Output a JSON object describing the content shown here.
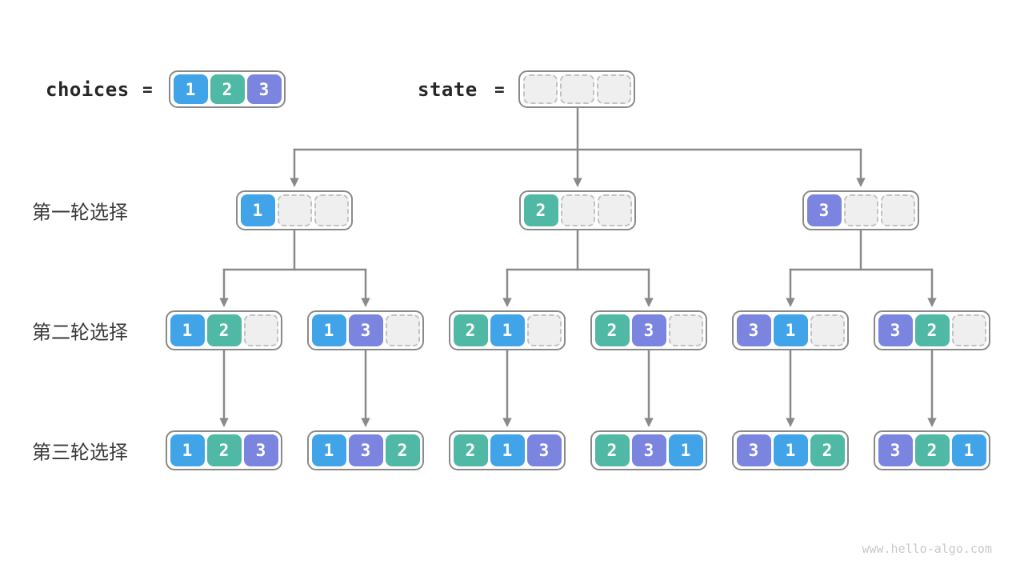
{
  "watermark": "www.hello-algo.com",
  "colors": {
    "cell_1": "#41A4E9",
    "cell_2": "#4FB9A6",
    "cell_3": "#7B85DF",
    "edge": "#8A8A8A",
    "empty_fill": "#EFEFEF",
    "empty_border": "#C2C2C2",
    "cell_text": "#FFFFFF"
  },
  "header": {
    "choices": {
      "label": "choices",
      "eq": "=",
      "cells": [
        1,
        2,
        3
      ]
    },
    "state": {
      "label": "state",
      "eq": "=",
      "cells": [
        null,
        null,
        null
      ]
    }
  },
  "rounds": [
    {
      "label": "第一轮选择",
      "nodes": [
        [
          1,
          null,
          null
        ],
        [
          2,
          null,
          null
        ],
        [
          3,
          null,
          null
        ]
      ]
    },
    {
      "label": "第二轮选择",
      "nodes": [
        [
          1,
          2,
          null
        ],
        [
          1,
          3,
          null
        ],
        [
          2,
          1,
          null
        ],
        [
          2,
          3,
          null
        ],
        [
          3,
          1,
          null
        ],
        [
          3,
          2,
          null
        ]
      ]
    },
    {
      "label": "第三轮选择",
      "nodes": [
        [
          1,
          2,
          3
        ],
        [
          1,
          3,
          2
        ],
        [
          2,
          1,
          3
        ],
        [
          2,
          3,
          1
        ],
        [
          3,
          1,
          2
        ],
        [
          3,
          2,
          1
        ]
      ]
    }
  ]
}
